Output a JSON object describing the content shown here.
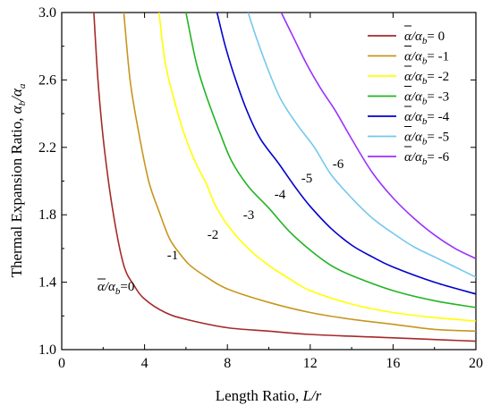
{
  "chart_data": {
    "type": "line",
    "title": "",
    "xlabel": "Length Ratio, L/r",
    "ylabel": "Thermal Expansion Ratio, αb/αa",
    "xlim": [
      0,
      20
    ],
    "ylim": [
      1.0,
      3.0
    ],
    "xticks": [
      "0",
      "4",
      "8",
      "12",
      "16",
      "20"
    ],
    "yticks": [
      "1.0",
      "1.4",
      "1.8",
      "2.2",
      "2.6",
      "3.0"
    ],
    "grid": false,
    "legend_position": "top-right",
    "series": [
      {
        "name": "ᾱ/αb= 0",
        "legend_prefix": "/α",
        "legend_sub": "b",
        "legend_value": "= 0",
        "inline_label": "=0",
        "color": "#a52a2a",
        "points": [
          [
            1.55,
            3.0
          ],
          [
            1.75,
            2.6
          ],
          [
            2.05,
            2.2
          ],
          [
            2.5,
            1.8
          ],
          [
            3.0,
            1.5
          ],
          [
            3.5,
            1.38
          ],
          [
            4.0,
            1.3
          ],
          [
            5.0,
            1.22
          ],
          [
            6.0,
            1.18
          ],
          [
            8.0,
            1.13
          ],
          [
            10.0,
            1.11
          ],
          [
            12.0,
            1.09
          ],
          [
            16.0,
            1.07
          ],
          [
            20.0,
            1.05
          ]
        ]
      },
      {
        "name": "ᾱ/αb= -1",
        "legend_prefix": "/α",
        "legend_sub": "b",
        "legend_value": "= -1",
        "inline_label": "-1",
        "color": "#c8961e",
        "points": [
          [
            3.0,
            3.0
          ],
          [
            3.3,
            2.6
          ],
          [
            3.7,
            2.3
          ],
          [
            4.2,
            2.0
          ],
          [
            4.7,
            1.82
          ],
          [
            5.2,
            1.66
          ],
          [
            5.7,
            1.57
          ],
          [
            6.2,
            1.5
          ],
          [
            7.0,
            1.43
          ],
          [
            8.0,
            1.36
          ],
          [
            10.0,
            1.28
          ],
          [
            12.0,
            1.22
          ],
          [
            14.0,
            1.18
          ],
          [
            16.0,
            1.15
          ],
          [
            18.0,
            1.12
          ],
          [
            20.0,
            1.11
          ]
        ]
      },
      {
        "name": "ᾱ/αb= -2",
        "legend_prefix": "/α",
        "legend_sub": "b",
        "legend_value": "= -2",
        "inline_label": "-2",
        "color": "#ffff00",
        "points": [
          [
            4.7,
            3.0
          ],
          [
            5.0,
            2.7
          ],
          [
            5.5,
            2.45
          ],
          [
            6.0,
            2.25
          ],
          [
            6.5,
            2.1
          ],
          [
            7.0,
            1.98
          ],
          [
            7.4,
            1.86
          ],
          [
            8.0,
            1.74
          ],
          [
            9.0,
            1.6
          ],
          [
            10.0,
            1.5
          ],
          [
            11.0,
            1.42
          ],
          [
            12.0,
            1.35
          ],
          [
            14.0,
            1.27
          ],
          [
            16.0,
            1.22
          ],
          [
            18.0,
            1.19
          ],
          [
            20.0,
            1.17
          ]
        ]
      },
      {
        "name": "ᾱ/αb= -3",
        "legend_prefix": "/α",
        "legend_sub": "b",
        "legend_value": "= -3",
        "inline_label": "-3",
        "color": "#22b422",
        "points": [
          [
            6.0,
            3.0
          ],
          [
            6.5,
            2.7
          ],
          [
            7.0,
            2.5
          ],
          [
            7.6,
            2.3
          ],
          [
            8.2,
            2.12
          ],
          [
            9.0,
            1.97
          ],
          [
            10.0,
            1.84
          ],
          [
            11.0,
            1.7
          ],
          [
            12.0,
            1.59
          ],
          [
            13.0,
            1.5
          ],
          [
            14.0,
            1.44
          ],
          [
            16.0,
            1.35
          ],
          [
            18.0,
            1.29
          ],
          [
            20.0,
            1.25
          ]
        ]
      },
      {
        "name": "ᾱ/αb= -4",
        "legend_prefix": "/α",
        "legend_sub": "b",
        "legend_value": "= -4",
        "inline_label": "-4",
        "color": "#0000cd",
        "points": [
          [
            7.5,
            3.0
          ],
          [
            7.9,
            2.8
          ],
          [
            8.4,
            2.6
          ],
          [
            9.0,
            2.4
          ],
          [
            9.6,
            2.25
          ],
          [
            10.5,
            2.1
          ],
          [
            11.3,
            1.96
          ],
          [
            12.0,
            1.85
          ],
          [
            13.0,
            1.72
          ],
          [
            14.0,
            1.62
          ],
          [
            15.0,
            1.55
          ],
          [
            16.0,
            1.49
          ],
          [
            18.0,
            1.4
          ],
          [
            20.0,
            1.33
          ]
        ]
      },
      {
        "name": "ᾱ/αb= -5",
        "legend_prefix": "/α",
        "legend_sub": "b",
        "legend_value": "= -5",
        "inline_label": "-5",
        "color": "#74c8ee",
        "points": [
          [
            9.0,
            3.0
          ],
          [
            9.4,
            2.85
          ],
          [
            10.0,
            2.65
          ],
          [
            10.6,
            2.48
          ],
          [
            11.4,
            2.33
          ],
          [
            12.2,
            2.2
          ],
          [
            13.0,
            2.04
          ],
          [
            14.0,
            1.9
          ],
          [
            15.0,
            1.78
          ],
          [
            16.0,
            1.69
          ],
          [
            17.0,
            1.61
          ],
          [
            18.0,
            1.55
          ],
          [
            19.0,
            1.49
          ],
          [
            20.0,
            1.43
          ]
        ]
      },
      {
        "name": "ᾱ/αb= -6",
        "legend_prefix": "/α",
        "legend_sub": "b",
        "legend_value": "= -6",
        "inline_label": "-6",
        "color": "#9b30ff",
        "points": [
          [
            10.6,
            3.0
          ],
          [
            11.2,
            2.85
          ],
          [
            11.8,
            2.7
          ],
          [
            12.5,
            2.55
          ],
          [
            13.2,
            2.42
          ],
          [
            14.0,
            2.25
          ],
          [
            15.0,
            2.05
          ],
          [
            16.0,
            1.9
          ],
          [
            17.0,
            1.78
          ],
          [
            18.0,
            1.68
          ],
          [
            19.0,
            1.6
          ],
          [
            20.0,
            1.54
          ]
        ]
      }
    ]
  }
}
